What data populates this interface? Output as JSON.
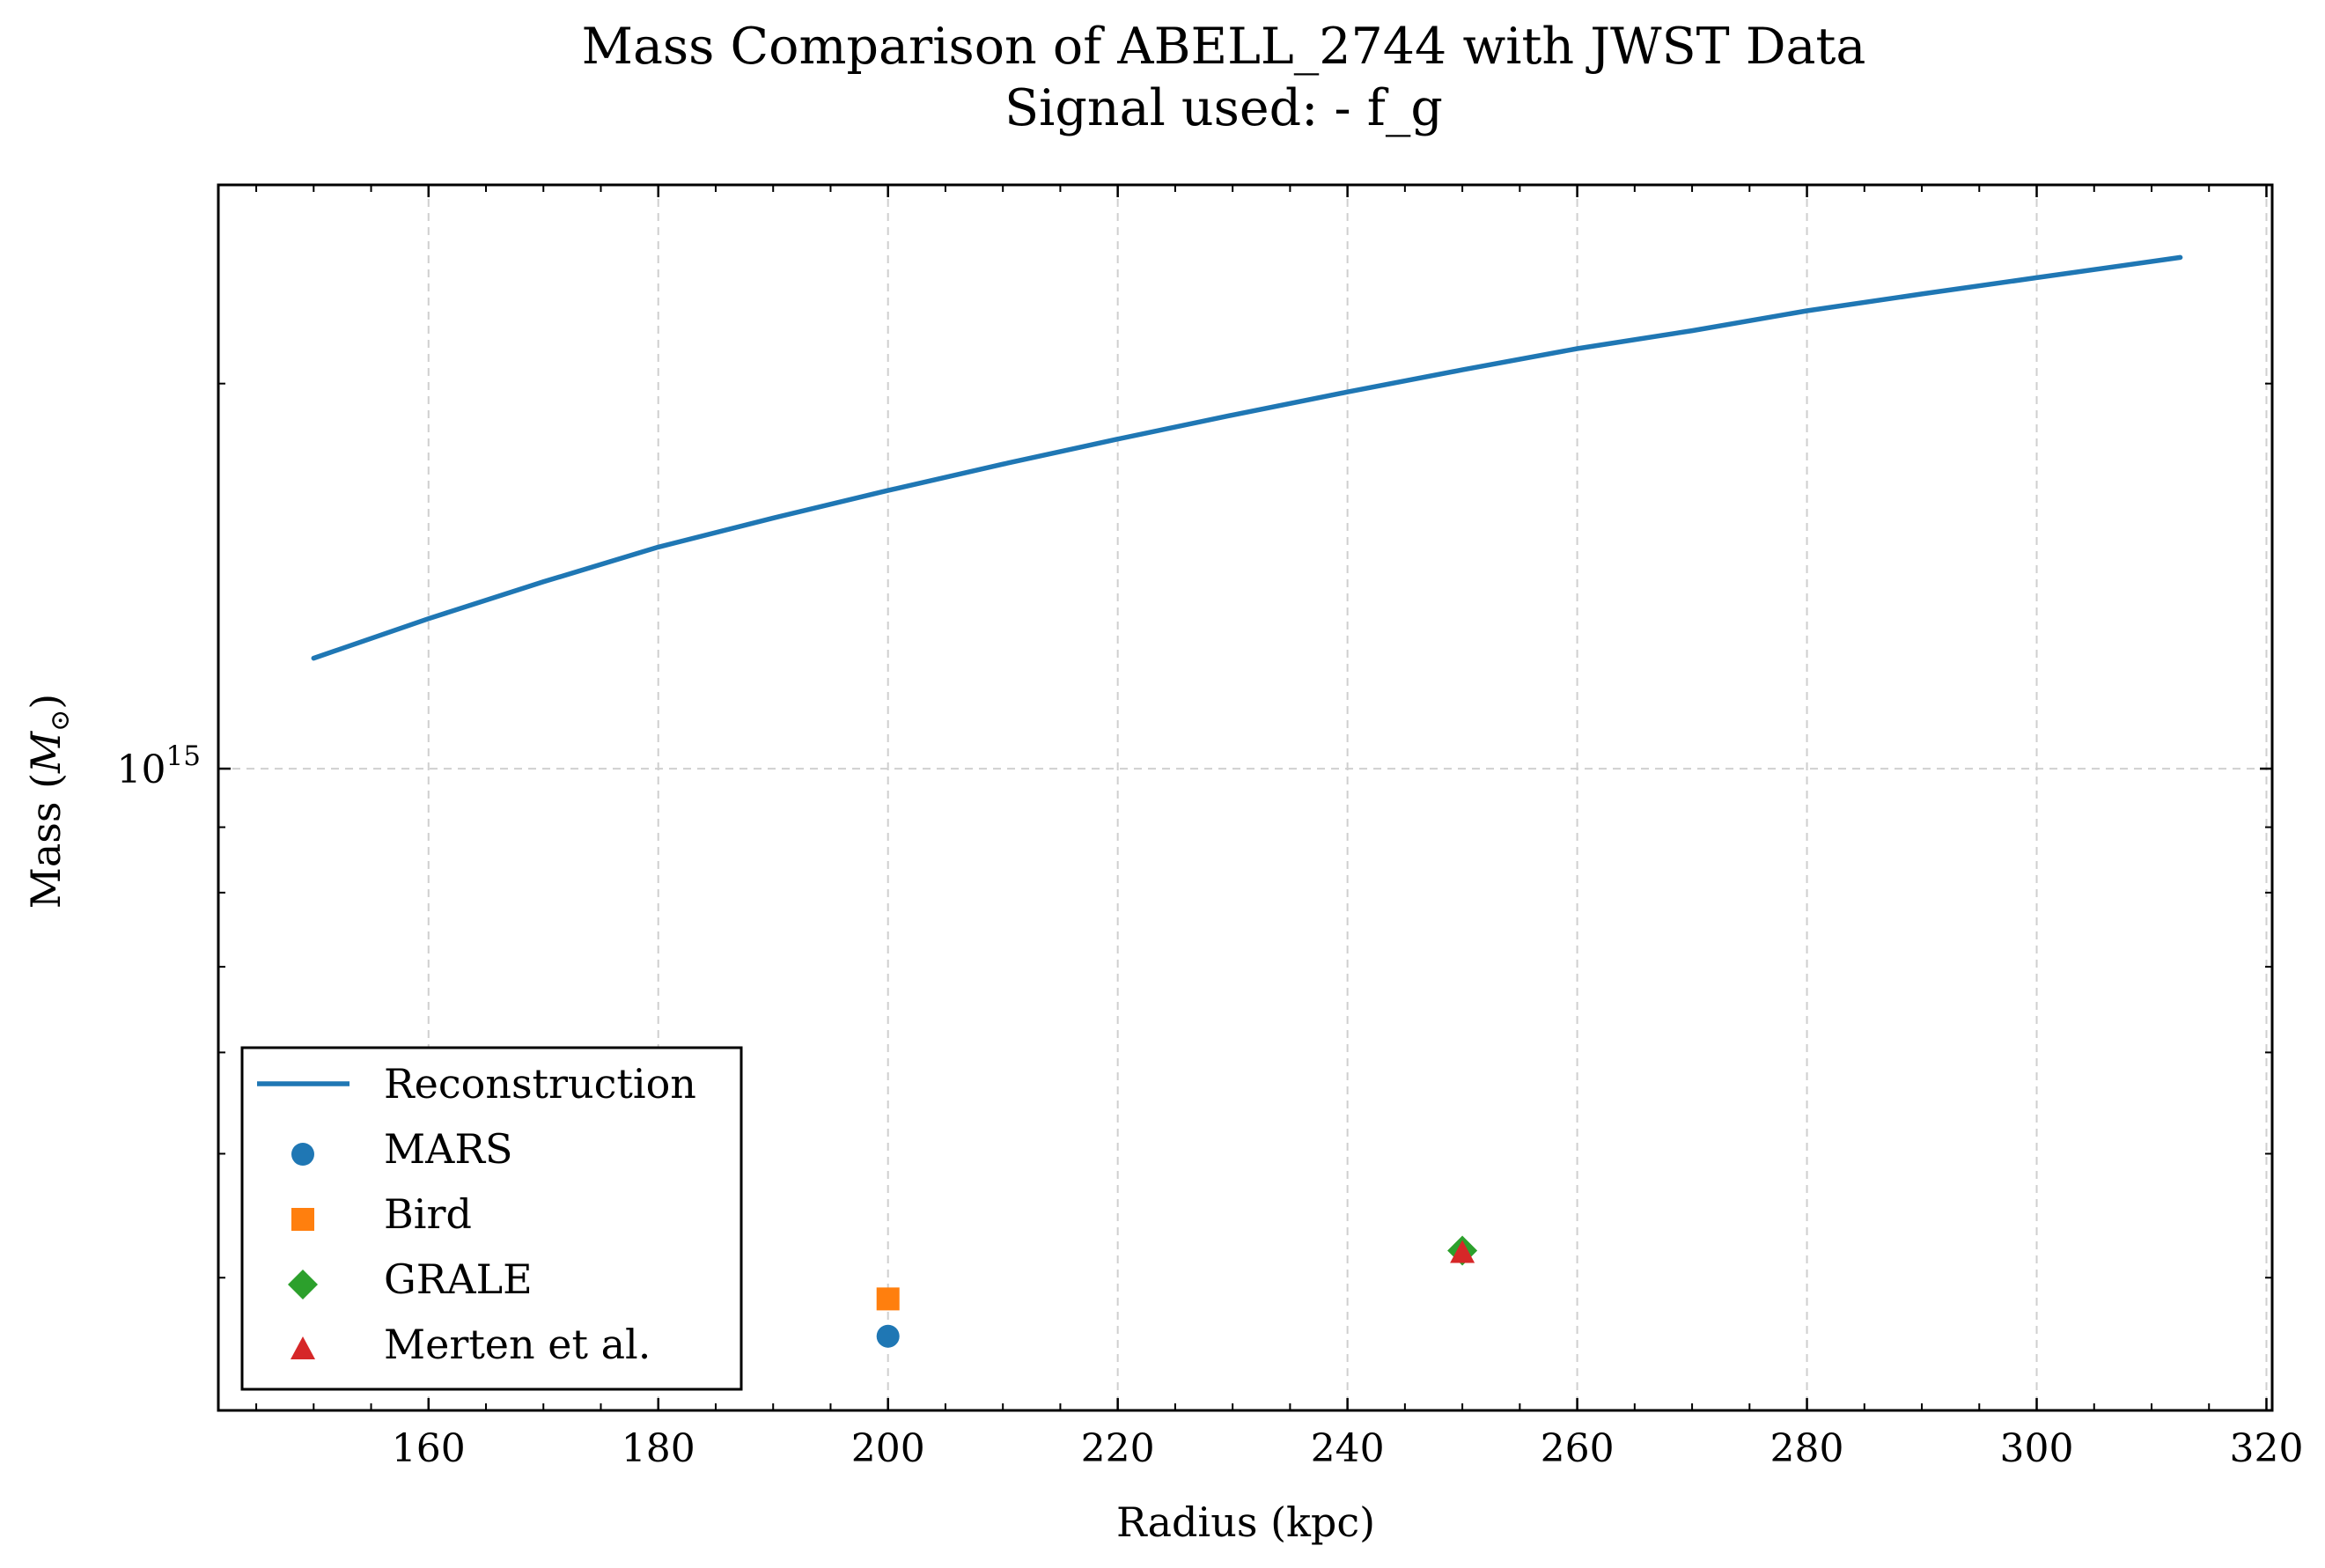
{
  "chart_data": {
    "type": "line",
    "title": "Mass Comparison of ABELL_2744 with JWST Data",
    "subtitle": "Signal used: - f_g",
    "xlabel": "Radius (kpc)",
    "ylabel": "Mass (M⊙)",
    "ylabel_main": "Mass (",
    "ylabel_symbol": "M",
    "ylabel_sub": "⊙",
    "ylabel_close": ")",
    "y_scale": "log",
    "xlim": [
      141.7,
      320.5
    ],
    "ylim": [
      315000000000000.0,
      2860000000000000.0
    ],
    "grid": true,
    "legend_position": "lower-left",
    "x_ticks": [
      160,
      180,
      200,
      220,
      240,
      260,
      280,
      300,
      320
    ],
    "x_tick_labels": [
      "160",
      "180",
      "200",
      "220",
      "240",
      "260",
      "280",
      "300",
      "320"
    ],
    "y_major_tick_labels": [
      {
        "value": 1000000000000000.0,
        "base": "10",
        "exponent": "15"
      }
    ],
    "series": [
      {
        "name": "Reconstruction",
        "kind": "line",
        "color": "#1f77b4",
        "x": [
          150,
          160,
          170,
          180,
          190,
          200,
          210,
          220,
          230,
          240,
          250,
          260,
          270,
          280,
          290,
          300,
          312.5
        ],
        "y": [
          1220000000000000.0,
          1310000000000000.0,
          1400000000000000.0,
          1490000000000000.0,
          1570000000000000.0,
          1650000000000000.0,
          1730000000000000.0,
          1810000000000000.0,
          1890000000000000.0,
          1970000000000000.0,
          2050000000000000.0,
          2130000000000000.0,
          2200000000000000.0,
          2280000000000000.0,
          2350000000000000.0,
          2420000000000000.0,
          2510000000000000.0
        ]
      },
      {
        "name": "MARS",
        "kind": "scatter",
        "marker": "circle",
        "color": "#1f77b4",
        "x": [
          200
        ],
        "y": [
          360000000000000.0
        ]
      },
      {
        "name": "Bird",
        "kind": "scatter",
        "marker": "square",
        "color": "#ff7f0e",
        "x": [
          200
        ],
        "y": [
          385000000000000.0
        ]
      },
      {
        "name": "GRALE",
        "kind": "scatter",
        "marker": "diamond",
        "color": "#2ca02c",
        "x": [
          250
        ],
        "y": [
          420000000000000.0
        ]
      },
      {
        "name": "Merten et al.",
        "kind": "scatter",
        "marker": "triangle",
        "color": "#d62728",
        "x": [
          250
        ],
        "y": [
          418000000000000.0
        ]
      }
    ]
  }
}
